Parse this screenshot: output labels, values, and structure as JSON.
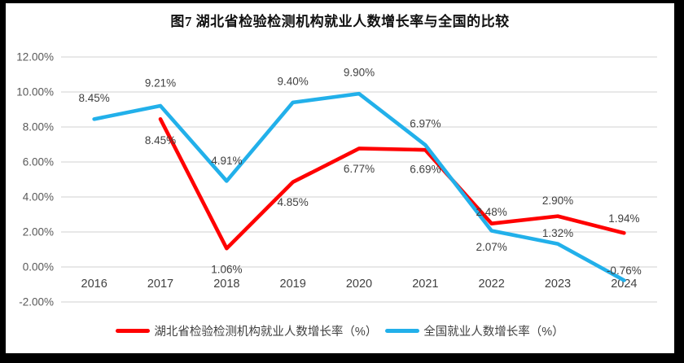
{
  "title": "图7 湖北省检验检测机构就业人数增长率与全国的比较",
  "colors": {
    "hubei_line": "#ff0000",
    "national_line": "#22b0ea",
    "gridline": "#d9d9d9",
    "axis_text": "#595959",
    "label_text": "#404040",
    "background": "#ffffff",
    "frame": "#000000"
  },
  "chart_data": {
    "type": "line",
    "title": "图7 湖北省检验检测机构就业人数增长率与全国的比较",
    "categories": [
      "2016",
      "2017",
      "2018",
      "2019",
      "2020",
      "2021",
      "2022",
      "2023",
      "2024"
    ],
    "series": [
      {
        "name": "湖北省检验检测机构就业人数增长率（%）",
        "color": "#ff0000",
        "values": [
          null,
          8.45,
          1.06,
          4.85,
          6.77,
          6.69,
          2.48,
          2.9,
          1.94
        ],
        "point_labels": [
          "",
          "8.45%",
          "1.06%",
          "4.85%",
          "6.77%",
          "6.69%",
          "2.48%",
          "2.90%",
          "1.94%"
        ],
        "label_dy": [
          0,
          26,
          26,
          25,
          25,
          24,
          -14,
          -19,
          -18
        ]
      },
      {
        "name": "全国就业人数增长率（%）",
        "color": "#22b0ea",
        "values": [
          8.45,
          9.21,
          4.91,
          9.4,
          9.9,
          6.97,
          2.07,
          1.32,
          -0.76
        ],
        "point_labels": [
          "8.45%",
          "9.21%",
          "4.91%",
          "9.40%",
          "9.90%",
          "6.97%",
          "2.07%",
          "1.32%",
          "-0.76%"
        ],
        "label_dy": [
          -26,
          -28,
          -25,
          -26,
          -26,
          -26,
          20,
          -13,
          -12
        ]
      }
    ],
    "y_ticks": [
      {
        "label": "12.00%",
        "value": 12
      },
      {
        "label": "10.00%",
        "value": 10
      },
      {
        "label": "8.00%",
        "value": 8
      },
      {
        "label": "6.00%",
        "value": 6
      },
      {
        "label": "4.00%",
        "value": 4
      },
      {
        "label": "2.00%",
        "value": 2
      },
      {
        "label": "0.00%",
        "value": 0
      },
      {
        "label": "-2.00%",
        "value": -2
      }
    ],
    "ylim": [
      -2,
      12
    ],
    "grid": "horizontal",
    "legend_position": "bottom"
  }
}
